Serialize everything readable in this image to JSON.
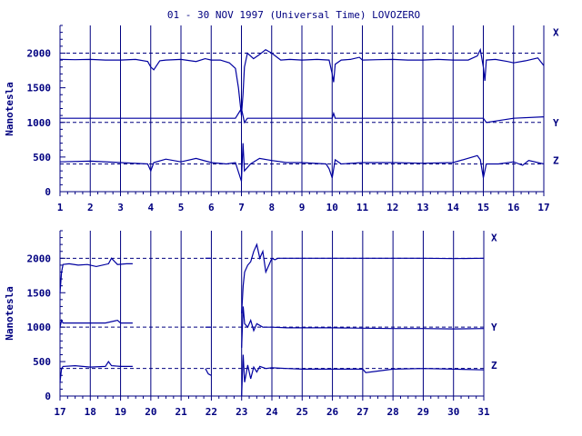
{
  "title": "01 - 30 NOV 1997 (Universal Time) LOVOZERO",
  "colors": {
    "ink": "#000080",
    "trace": "#0000a0",
    "background": "#ffffff"
  },
  "chart_data": [
    {
      "type": "line",
      "ylabel": "Nanotesla",
      "xlim": [
        1,
        17
      ],
      "ylim": [
        0,
        2400
      ],
      "x_ticks": [
        "1",
        "2",
        "3",
        "4",
        "5",
        "6",
        "7",
        "8",
        "9",
        "10",
        "11",
        "12",
        "13",
        "14",
        "15",
        "16",
        "17"
      ],
      "y_ticks": [
        "0",
        "500",
        "1000",
        "1500",
        "2000"
      ],
      "baselines": [
        2000,
        1000,
        400
      ],
      "grid": "vertical lines at each day",
      "series": [
        {
          "name": "X",
          "x": [
            1.0,
            1.5,
            2.0,
            2.5,
            3.0,
            3.5,
            3.9,
            4.0,
            4.1,
            4.3,
            4.5,
            5.0,
            5.5,
            5.8,
            6.0,
            6.3,
            6.6,
            6.8,
            6.9,
            7.0,
            7.05,
            7.1,
            7.2,
            7.4,
            7.6,
            7.8,
            8.0,
            8.3,
            8.6,
            9.0,
            9.5,
            9.9,
            10.0,
            10.05,
            10.1,
            10.3,
            10.6,
            10.9,
            11.0,
            11.5,
            12.0,
            12.5,
            13.0,
            13.5,
            14.0,
            14.5,
            14.8,
            14.9,
            15.0,
            15.05,
            15.1,
            15.4,
            15.8,
            16.0,
            16.4,
            16.8,
            17.0
          ],
          "values": [
            1910,
            1905,
            1910,
            1900,
            1900,
            1910,
            1880,
            1800,
            1760,
            1890,
            1900,
            1910,
            1880,
            1920,
            1900,
            1900,
            1860,
            1780,
            1500,
            1100,
            1400,
            1800,
            2000,
            1920,
            1980,
            2050,
            2000,
            1900,
            1910,
            1900,
            1910,
            1900,
            1700,
            1580,
            1840,
            1900,
            1910,
            1940,
            1900,
            1905,
            1910,
            1900,
            1900,
            1910,
            1900,
            1900,
            1960,
            2050,
            1800,
            1600,
            1900,
            1910,
            1880,
            1860,
            1890,
            1930,
            1820
          ]
        },
        {
          "name": "Y",
          "x": [
            1.0,
            2.0,
            3.0,
            4.0,
            5.0,
            6.0,
            6.8,
            7.0,
            7.1,
            7.2,
            7.5,
            8.0,
            9.0,
            10.0,
            10.05,
            10.1,
            11.0,
            12.0,
            13.0,
            14.0,
            15.0,
            15.1,
            16.0,
            17.0
          ],
          "values": [
            1060,
            1060,
            1060,
            1060,
            1060,
            1060,
            1060,
            1200,
            1000,
            1060,
            1060,
            1060,
            1060,
            1060,
            1130,
            1060,
            1060,
            1060,
            1060,
            1060,
            1060,
            1000,
            1060,
            1080
          ]
        },
        {
          "name": "Z",
          "x": [
            1.0,
            2.0,
            3.0,
            3.9,
            4.0,
            4.1,
            4.5,
            5.0,
            5.5,
            6.0,
            6.5,
            6.8,
            7.0,
            7.05,
            7.1,
            7.3,
            7.6,
            8.0,
            8.5,
            9.0,
            9.8,
            9.9,
            10.0,
            10.1,
            10.3,
            11.0,
            12.0,
            13.0,
            14.0,
            14.8,
            14.9,
            15.0,
            15.1,
            15.5,
            16.0,
            16.3,
            16.5,
            17.0
          ],
          "values": [
            430,
            440,
            420,
            400,
            300,
            420,
            470,
            430,
            480,
            420,
            400,
            420,
            150,
            700,
            300,
            400,
            480,
            450,
            420,
            420,
            400,
            330,
            200,
            460,
            400,
            420,
            420,
            410,
            420,
            520,
            460,
            200,
            400,
            400,
            430,
            380,
            450,
            400
          ]
        }
      ]
    },
    {
      "type": "line",
      "ylabel": "Nanotesla",
      "xlim": [
        17,
        31
      ],
      "ylim": [
        0,
        2400
      ],
      "x_ticks": [
        "17",
        "18",
        "19",
        "20",
        "21",
        "22",
        "23",
        "24",
        "25",
        "26",
        "27",
        "28",
        "29",
        "30",
        "31"
      ],
      "y_ticks": [
        "0",
        "500",
        "1000",
        "1500",
        "2000"
      ],
      "baselines": [
        2000,
        1000,
        400
      ],
      "grid": "vertical lines at each day",
      "series": [
        {
          "name": "X",
          "segments": [
            {
              "x": [
                17.0,
                17.05,
                17.1,
                17.3,
                17.6,
                17.9,
                18.2,
                18.6,
                18.7,
                18.9,
                19.2,
                19.4
              ],
              "values": [
                1500,
                1800,
                1910,
                1920,
                1900,
                1910,
                1880,
                1920,
                2000,
                1910,
                1920,
                1920
              ]
            },
            {
              "x": [
                21.8,
                22.0
              ],
              "values": [
                2000,
                2000
              ]
            },
            {
              "x": [
                23.0,
                23.05,
                23.1,
                23.2,
                23.3,
                23.4,
                23.5,
                23.6,
                23.7,
                23.8,
                23.9,
                24.0,
                24.1,
                24.2,
                24.5,
                25.0,
                26.0,
                27.0,
                28.0,
                29.0,
                30.0,
                31.0
              ],
              "values": [
                1200,
                1600,
                1800,
                1900,
                1950,
                2100,
                2200,
                2000,
                2100,
                1800,
                1900,
                2000,
                1980,
                2000,
                2000,
                2000,
                2000,
                2000,
                2000,
                2000,
                1995,
                2000
              ]
            }
          ]
        },
        {
          "name": "Y",
          "segments": [
            {
              "x": [
                17.0,
                17.05,
                17.1,
                17.5,
                18.0,
                18.5,
                18.9,
                19.0,
                19.4
              ],
              "values": [
                1000,
                1100,
                1060,
                1060,
                1060,
                1060,
                1100,
                1060,
                1060
              ]
            },
            {
              "x": [
                21.8,
                22.0
              ],
              "values": [
                1000,
                1000
              ]
            },
            {
              "x": [
                23.0,
                23.05,
                23.1,
                23.2,
                23.3,
                23.4,
                23.5,
                23.7,
                24.0,
                24.5,
                25.0,
                26.0,
                27.0,
                28.0,
                29.0,
                30.0,
                31.0
              ],
              "values": [
                700,
                1300,
                1050,
                1000,
                1100,
                950,
                1050,
                1000,
                1000,
                990,
                990,
                990,
                985,
                980,
                980,
                975,
                980
              ]
            }
          ]
        },
        {
          "name": "Z",
          "segments": [
            {
              "x": [
                17.0,
                17.05,
                17.1,
                17.5,
                18.0,
                18.5,
                18.6,
                18.7,
                19.0,
                19.4
              ],
              "values": [
                200,
                400,
                430,
                440,
                420,
                430,
                500,
                440,
                430,
                430
              ]
            },
            {
              "x": [
                21.8,
                21.9,
                22.0
              ],
              "values": [
                400,
                320,
                300
              ]
            },
            {
              "x": [
                23.0,
                23.05,
                23.1,
                23.2,
                23.3,
                23.4,
                23.5,
                23.6,
                23.8,
                24.0,
                24.5,
                25.0,
                26.0,
                27.0,
                27.1,
                28.0,
                29.0,
                30.0,
                31.0
              ],
              "values": [
                0,
                600,
                200,
                450,
                250,
                420,
                350,
                430,
                400,
                410,
                400,
                390,
                390,
                390,
                340,
                390,
                400,
                390,
                380
              ]
            }
          ]
        }
      ]
    }
  ]
}
